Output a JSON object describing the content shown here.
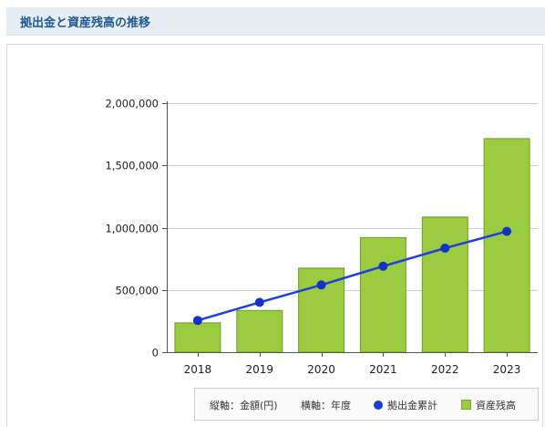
{
  "header": {
    "title": "拠出金と資産残高の推移"
  },
  "colors": {
    "bar_fill": "#9acb40",
    "bar_stroke": "#6f9e27",
    "line": "#1f3fe0",
    "marker": "#1233c8",
    "axis": "#555555",
    "grid": "#d0d0d0",
    "header_bg": "#e6eef4",
    "header_text": "#1f5a92"
  },
  "legend": {
    "y_axis_note": "縦軸：金額(円)",
    "x_axis_note": "横軸：年度",
    "line_label": "拠出金累計",
    "bar_label": "資産残高"
  },
  "chart_data": {
    "type": "bar",
    "categories": [
      "2018",
      "2019",
      "2020",
      "2021",
      "2022",
      "2023"
    ],
    "ylim": [
      0,
      2000000
    ],
    "yticks": [
      0,
      500000,
      1000000,
      1500000,
      2000000
    ],
    "ytick_labels": [
      "0",
      "500,000",
      "1,000,000",
      "1,500,000",
      "2,000,000"
    ],
    "grid": true,
    "legend_position": "bottom-right",
    "xlabel": "",
    "ylabel": "",
    "series": [
      {
        "name": "資産残高",
        "kind": "bar",
        "values": [
          235000,
          335000,
          675000,
          920000,
          1085000,
          1715000
        ]
      },
      {
        "name": "拠出金累計",
        "kind": "line",
        "values": [
          255000,
          400000,
          540000,
          690000,
          835000,
          970000
        ]
      }
    ]
  }
}
